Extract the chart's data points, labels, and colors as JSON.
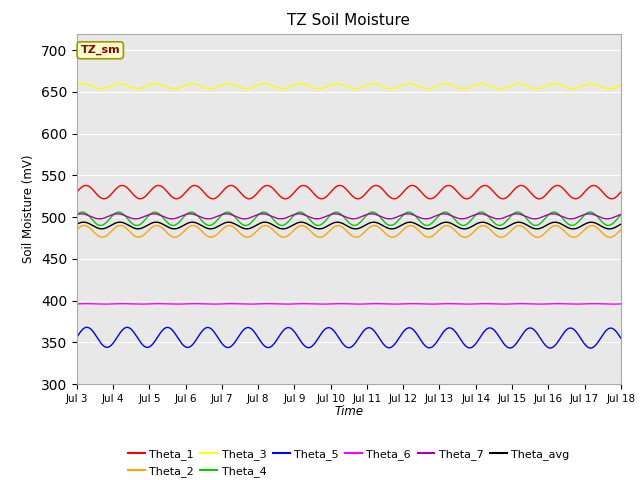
{
  "title": "TZ Soil Moisture",
  "ylabel": "Soil Moisture (mV)",
  "xlabel": "Time",
  "annotation": "TZ_sm",
  "ylim": [
    300,
    720
  ],
  "yticks": [
    300,
    350,
    400,
    450,
    500,
    550,
    600,
    650,
    700
  ],
  "x_start_day": 3,
  "x_end_day": 18,
  "num_points": 1500,
  "series": {
    "Theta_1": {
      "color": "#ff0000",
      "base": 530,
      "amp": 8,
      "freq": 1.0,
      "phase": 0.0,
      "trend": 0.0
    },
    "Theta_2": {
      "color": "#ffa500",
      "base": 483,
      "amp": 7,
      "freq": 1.0,
      "phase": 0.3,
      "trend": -0.2
    },
    "Theta_3": {
      "color": "#ffff00",
      "base": 657,
      "amp": 3,
      "freq": 1.0,
      "phase": 0.5,
      "trend": -0.15
    },
    "Theta_4": {
      "color": "#00cc00",
      "base": 498,
      "amp": 8,
      "freq": 1.0,
      "phase": 0.6,
      "trend": 0.1
    },
    "Theta_5": {
      "color": "#0000ff",
      "base": 356,
      "amp": 12,
      "freq": 0.9,
      "phase": 0.0,
      "trend": -1.0
    },
    "Theta_6": {
      "color": "#ff00ff",
      "base": 396,
      "amp": 0.3,
      "freq": 1.0,
      "phase": 0.0,
      "trend": 0.0
    },
    "Theta_7": {
      "color": "#aa00aa",
      "base": 501,
      "amp": 3,
      "freq": 1.0,
      "phase": 0.8,
      "trend": 0.0
    },
    "Theta_avg": {
      "color": "#000000",
      "base": 490,
      "amp": 4,
      "freq": 1.0,
      "phase": 0.4,
      "trend": -0.1
    }
  },
  "xtick_labels": [
    "Jul 3",
    "Jul 4",
    "Jul 5",
    "Jul 6",
    "Jul 7",
    "Jul 8",
    "Jul 9",
    "Jul 10",
    "Jul 11",
    "Jul 12",
    "Jul 13",
    "Jul 14",
    "Jul 15",
    "Jul 16",
    "Jul 17",
    "Jul 18"
  ],
  "xtick_positions": [
    3,
    4,
    5,
    6,
    7,
    8,
    9,
    10,
    11,
    12,
    13,
    14,
    15,
    16,
    17,
    18
  ],
  "bg_color": "#e8e8e8",
  "linewidth": 1.0,
  "legend_order": [
    "Theta_1",
    "Theta_2",
    "Theta_3",
    "Theta_4",
    "Theta_5",
    "Theta_6",
    "Theta_7",
    "Theta_avg"
  ]
}
